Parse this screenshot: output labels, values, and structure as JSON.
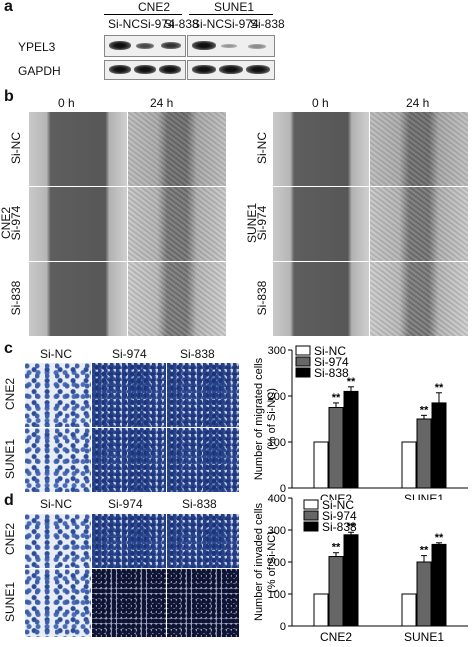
{
  "panels": {
    "a": "a",
    "b": "b",
    "c": "c",
    "d": "d"
  },
  "panel_a": {
    "groups": [
      "CNE2",
      "SUNE1"
    ],
    "lanes": [
      "Si-NC",
      "Si-974",
      "Si-838",
      "Si-NC",
      "Si-974",
      "Si-838"
    ],
    "rows": [
      "YPEL3",
      "GAPDH"
    ]
  },
  "panel_b": {
    "times": [
      "0 h",
      "24 h"
    ],
    "row_labels": [
      "Si-NC",
      "Si-974",
      "Si-838"
    ],
    "cell_lines": [
      "CNE2",
      "SUNE1"
    ]
  },
  "panel_c": {
    "col_labels": [
      "Si-NC",
      "Si-974",
      "Si-838"
    ],
    "row_labels": [
      "CNE2",
      "SUNE1"
    ]
  },
  "panel_d": {
    "col_labels": [
      "Si-NC",
      "Si-974",
      "Si-838"
    ],
    "row_labels": [
      "CNE2",
      "SUNE1"
    ]
  },
  "colors": {
    "si_nc": "#ffffff",
    "si_974": "#666666",
    "si_838": "#000000"
  },
  "chart_data": [
    {
      "type": "bar",
      "categories": [
        "CNE2",
        "SUNE1"
      ],
      "series": [
        {
          "name": "Si-NC",
          "values": [
            100,
            100
          ],
          "errors": [
            0,
            0
          ]
        },
        {
          "name": "Si-974",
          "values": [
            175,
            150
          ],
          "errors": [
            10,
            8
          ]
        },
        {
          "name": "Si-838",
          "values": [
            210,
            185
          ],
          "errors": [
            10,
            22
          ]
        }
      ],
      "sig": [
        [
          "",
          ""
        ],
        [
          "**",
          "**"
        ],
        [
          "**",
          "**"
        ]
      ],
      "ylabel": "Number of migrated cells\n(% of Si-NC)",
      "ylim": [
        0,
        300
      ],
      "yticks": [
        "0",
        "100",
        "200",
        "300"
      ]
    },
    {
      "type": "bar",
      "categories": [
        "CNE2",
        "SUNE1"
      ],
      "series": [
        {
          "name": "Si-NC",
          "values": [
            100,
            100
          ],
          "errors": [
            0,
            0
          ]
        },
        {
          "name": "Si-974",
          "values": [
            217,
            200
          ],
          "errors": [
            12,
            20
          ]
        },
        {
          "name": "Si-838",
          "values": [
            285,
            255
          ],
          "errors": [
            8,
            5
          ]
        }
      ],
      "sig": [
        [
          "",
          ""
        ],
        [
          "**",
          "**"
        ],
        [
          "**",
          "**"
        ]
      ],
      "ylabel": "Number of invaded cells\n(% of Si-NC)",
      "ylim": [
        0,
        400
      ],
      "yticks": [
        "0",
        "100",
        "200",
        "300",
        "400"
      ]
    }
  ]
}
